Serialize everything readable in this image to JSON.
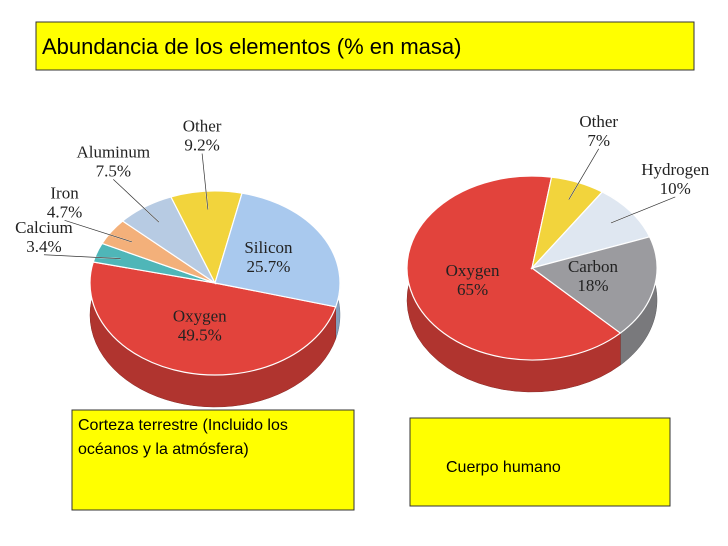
{
  "title": "Abundancia de los elementos (% en masa)",
  "chart_data": [
    {
      "type": "pie",
      "title": "Corteza terrestre (Incluido los océanos y la atmósfera)",
      "categories": [
        "Oxygen",
        "Calcium",
        "Iron",
        "Aluminum",
        "Other",
        "Silicon"
      ],
      "values": [
        49.5,
        3.4,
        4.7,
        7.5,
        9.2,
        25.7
      ],
      "value_labels": [
        "49.5%",
        "3.4%",
        "4.7%",
        "7.5%",
        "9.2%",
        "25.7%"
      ],
      "colors": [
        "#e2433c",
        "#4fb6b8",
        "#f3b07a",
        "#b7cbe3",
        "#f2d43c",
        "#a9c9ee"
      ]
    },
    {
      "type": "pie",
      "title": "Cuerpo humano",
      "categories": [
        "Oxygen",
        "Other",
        "Hydrogen",
        "Carbon"
      ],
      "values": [
        65,
        7,
        10,
        18
      ],
      "value_labels": [
        "65%",
        "7%",
        "10%",
        "18%"
      ],
      "colors": [
        "#e2433c",
        "#f2d43c",
        "#dfe7f1",
        "#9b9b9f"
      ]
    }
  ]
}
